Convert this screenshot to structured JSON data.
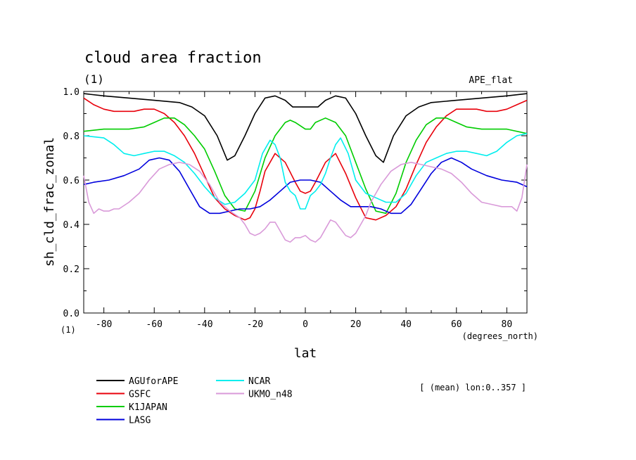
{
  "chart_data": {
    "type": "line",
    "title": "cloud area fraction",
    "title_unit": "(1)",
    "experiment": "APE_flat",
    "ylabel": "sh_cld_frac_zonal",
    "xlabel": "lat",
    "x_unit": "(degrees_north)",
    "y_unit": "(1)",
    "annotation": "[ (mean) lon:0..357 ]",
    "xlim": [
      -88,
      88
    ],
    "ylim": [
      0.0,
      1.0
    ],
    "xticks": [
      -80,
      -60,
      -40,
      -20,
      0,
      20,
      40,
      60,
      80
    ],
    "yticks": [
      0.0,
      0.2,
      0.4,
      0.6,
      0.8,
      1.0
    ],
    "xtick_labels": [
      "-80",
      "-60",
      "-40",
      "-20",
      "0",
      "20",
      "40",
      "60",
      "80"
    ],
    "ytick_labels": [
      "0.0",
      "0.2",
      "0.4",
      "0.6",
      "0.8",
      "1.0"
    ],
    "legend_position": "bottom-left",
    "series": [
      {
        "name": "AGUforAPE",
        "color": "#000000",
        "x": [
          -88,
          -80,
          -70,
          -60,
          -50,
          -45,
          -40,
          -35,
          -31,
          -28,
          -24,
          -20,
          -16,
          -12,
          -8,
          -5,
          0,
          5,
          8,
          12,
          16,
          20,
          24,
          28,
          31,
          35,
          40,
          45,
          50,
          60,
          70,
          80,
          88
        ],
        "y": [
          0.99,
          0.98,
          0.97,
          0.96,
          0.95,
          0.93,
          0.89,
          0.8,
          0.69,
          0.71,
          0.8,
          0.9,
          0.97,
          0.98,
          0.96,
          0.93,
          0.93,
          0.93,
          0.96,
          0.98,
          0.97,
          0.9,
          0.8,
          0.71,
          0.68,
          0.8,
          0.89,
          0.93,
          0.95,
          0.96,
          0.97,
          0.98,
          0.99
        ]
      },
      {
        "name": "GSFC",
        "color": "#e8000b",
        "x": [
          -88,
          -84,
          -80,
          -76,
          -72,
          -68,
          -64,
          -60,
          -56,
          -52,
          -48,
          -44,
          -40,
          -36,
          -32,
          -28,
          -24,
          -22,
          -20,
          -18,
          -16,
          -12,
          -8,
          -4,
          -2,
          0,
          2,
          4,
          8,
          12,
          16,
          20,
          24,
          28,
          32,
          36,
          40,
          44,
          48,
          52,
          56,
          60,
          64,
          68,
          72,
          76,
          80,
          84,
          88
        ],
        "y": [
          0.97,
          0.94,
          0.92,
          0.91,
          0.91,
          0.91,
          0.92,
          0.92,
          0.9,
          0.86,
          0.8,
          0.72,
          0.62,
          0.52,
          0.47,
          0.44,
          0.42,
          0.43,
          0.47,
          0.55,
          0.64,
          0.72,
          0.68,
          0.59,
          0.55,
          0.54,
          0.55,
          0.59,
          0.68,
          0.72,
          0.63,
          0.52,
          0.43,
          0.42,
          0.44,
          0.48,
          0.56,
          0.67,
          0.77,
          0.84,
          0.89,
          0.92,
          0.92,
          0.92,
          0.91,
          0.91,
          0.92,
          0.94,
          0.96
        ]
      },
      {
        "name": "K1JAPAN",
        "color": "#00cc00",
        "x": [
          -88,
          -80,
          -70,
          -64,
          -60,
          -56,
          -52,
          -48,
          -44,
          -40,
          -36,
          -32,
          -28,
          -24,
          -20,
          -16,
          -12,
          -8,
          -6,
          -4,
          0,
          2,
          4,
          8,
          12,
          16,
          20,
          24,
          28,
          32,
          36,
          40,
          44,
          48,
          52,
          56,
          60,
          64,
          70,
          80,
          88
        ],
        "y": [
          0.82,
          0.83,
          0.83,
          0.84,
          0.86,
          0.88,
          0.88,
          0.85,
          0.8,
          0.74,
          0.64,
          0.53,
          0.47,
          0.46,
          0.55,
          0.7,
          0.8,
          0.86,
          0.87,
          0.86,
          0.83,
          0.83,
          0.86,
          0.88,
          0.86,
          0.8,
          0.68,
          0.56,
          0.46,
          0.45,
          0.54,
          0.68,
          0.78,
          0.85,
          0.88,
          0.88,
          0.86,
          0.84,
          0.83,
          0.83,
          0.81
        ]
      },
      {
        "name": "LASG",
        "color": "#0000dd",
        "x": [
          -88,
          -84,
          -78,
          -72,
          -66,
          -62,
          -58,
          -54,
          -50,
          -46,
          -42,
          -38,
          -34,
          -30,
          -26,
          -22,
          -18,
          -14,
          -10,
          -6,
          -2,
          0,
          2,
          6,
          10,
          14,
          18,
          22,
          26,
          30,
          34,
          38,
          42,
          46,
          50,
          54,
          58,
          62,
          66,
          72,
          78,
          84,
          88
        ],
        "y": [
          0.58,
          0.59,
          0.6,
          0.62,
          0.65,
          0.69,
          0.7,
          0.69,
          0.64,
          0.56,
          0.48,
          0.45,
          0.45,
          0.46,
          0.47,
          0.47,
          0.48,
          0.51,
          0.55,
          0.59,
          0.6,
          0.6,
          0.6,
          0.59,
          0.55,
          0.51,
          0.48,
          0.48,
          0.48,
          0.47,
          0.45,
          0.45,
          0.49,
          0.56,
          0.63,
          0.68,
          0.7,
          0.68,
          0.65,
          0.62,
          0.6,
          0.59,
          0.57
        ]
      },
      {
        "name": "NCAR",
        "color": "#00eeee",
        "x": [
          -88,
          -80,
          -76,
          -72,
          -68,
          -64,
          -60,
          -56,
          -52,
          -48,
          -44,
          -40,
          -36,
          -32,
          -28,
          -24,
          -20,
          -17,
          -14,
          -12,
          -10,
          -8,
          -6,
          -4,
          -2,
          0,
          2,
          4,
          6,
          8,
          10,
          12,
          14,
          17,
          20,
          24,
          28,
          32,
          36,
          40,
          44,
          48,
          52,
          56,
          60,
          64,
          68,
          72,
          76,
          80,
          84,
          88
        ],
        "y": [
          0.8,
          0.79,
          0.76,
          0.72,
          0.71,
          0.72,
          0.73,
          0.73,
          0.71,
          0.68,
          0.63,
          0.57,
          0.52,
          0.49,
          0.5,
          0.54,
          0.6,
          0.72,
          0.78,
          0.76,
          0.7,
          0.59,
          0.55,
          0.53,
          0.47,
          0.47,
          0.53,
          0.55,
          0.58,
          0.63,
          0.7,
          0.76,
          0.79,
          0.72,
          0.6,
          0.54,
          0.52,
          0.5,
          0.5,
          0.54,
          0.62,
          0.68,
          0.7,
          0.72,
          0.73,
          0.73,
          0.72,
          0.71,
          0.73,
          0.77,
          0.8,
          0.81
        ]
      },
      {
        "name": "UKMO_n48",
        "color": "#d99ad9",
        "x": [
          -88,
          -86,
          -84,
          -82,
          -80,
          -78,
          -76,
          -74,
          -70,
          -66,
          -62,
          -58,
          -54,
          -50,
          -46,
          -42,
          -38,
          -34,
          -30,
          -26,
          -24,
          -22,
          -20,
          -18,
          -16,
          -14,
          -12,
          -10,
          -8,
          -6,
          -4,
          -2,
          0,
          2,
          4,
          6,
          8,
          10,
          12,
          14,
          16,
          18,
          20,
          22,
          24,
          26,
          30,
          34,
          38,
          42,
          46,
          50,
          54,
          58,
          62,
          66,
          70,
          74,
          78,
          82,
          84,
          86,
          88
        ],
        "y": [
          0.62,
          0.5,
          0.45,
          0.47,
          0.46,
          0.46,
          0.47,
          0.47,
          0.5,
          0.54,
          0.6,
          0.65,
          0.67,
          0.68,
          0.67,
          0.64,
          0.58,
          0.5,
          0.46,
          0.43,
          0.4,
          0.36,
          0.35,
          0.36,
          0.38,
          0.41,
          0.41,
          0.37,
          0.33,
          0.32,
          0.34,
          0.34,
          0.35,
          0.33,
          0.32,
          0.34,
          0.38,
          0.42,
          0.41,
          0.38,
          0.35,
          0.34,
          0.36,
          0.4,
          0.44,
          0.5,
          0.58,
          0.64,
          0.67,
          0.68,
          0.67,
          0.66,
          0.65,
          0.63,
          0.59,
          0.54,
          0.5,
          0.49,
          0.48,
          0.48,
          0.46,
          0.52,
          0.67
        ]
      }
    ]
  }
}
